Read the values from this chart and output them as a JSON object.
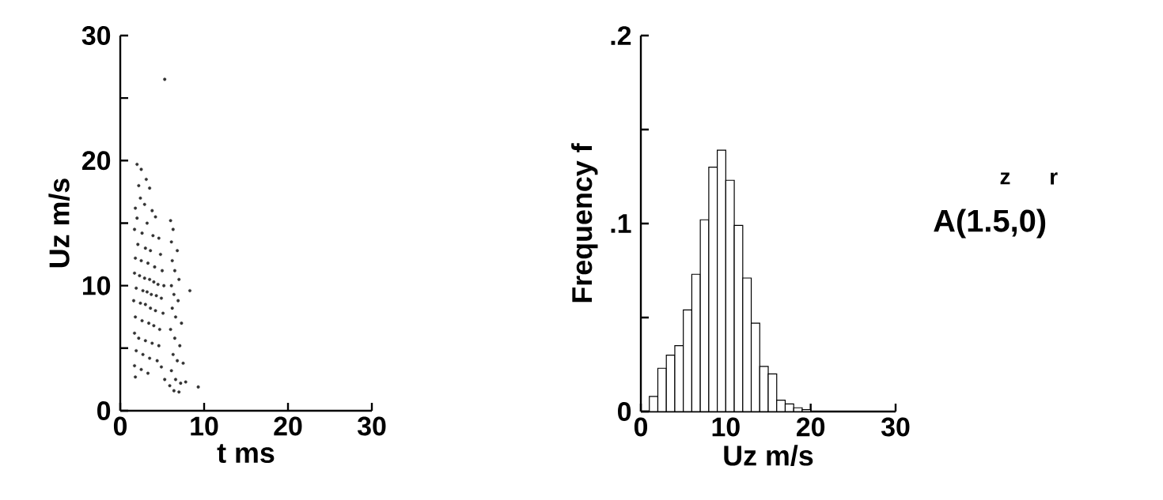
{
  "chart_data": [
    {
      "type": "scatter",
      "xlabel": "t    ms",
      "ylabel": "Uz    m/s",
      "color": "#333333",
      "xlim": [
        0,
        30
      ],
      "xticks": [
        0,
        10,
        20,
        30
      ],
      "ylim": [
        0,
        30
      ],
      "yticks": [
        0,
        {
          "value": 5,
          "label": null
        },
        10,
        {
          "value": 15,
          "label": null
        },
        20,
        {
          "value": 25,
          "label": null
        },
        30
      ],
      "x": [
        2.0,
        2.5,
        2.2,
        3.1,
        3.5,
        2.4,
        1.8,
        2.9,
        3.8,
        4.2,
        2.0,
        3.2,
        1.7,
        2.6,
        3.9,
        4.6,
        2.1,
        3.0,
        3.6,
        4.8,
        1.8,
        2.5,
        3.3,
        4.1,
        5.0,
        1.7,
        2.3,
        2.9,
        3.5,
        4.0,
        4.5,
        5.2,
        1.9,
        2.7,
        3.2,
        3.7,
        4.3,
        4.9,
        1.6,
        2.4,
        3.0,
        3.6,
        4.2,
        5.1,
        1.8,
        2.6,
        3.4,
        4.0,
        4.7,
        1.7,
        2.2,
        3.0,
        3.8,
        4.6,
        1.9,
        2.7,
        3.5,
        4.4,
        1.7,
        2.5,
        3.3,
        1.8,
        4.9,
        5.3,
        6.0,
        6.3,
        6.1,
        6.8,
        6.2,
        6.5,
        7.0,
        6.1,
        6.4,
        8.3,
        6.9,
        6.2,
        6.6,
        7.3,
        6.0,
        6.5,
        7.1,
        6.3,
        6.8,
        7.5,
        6.1,
        6.6,
        7.2,
        5.9,
        6.4,
        7.0,
        7.8,
        9.3,
        5.3
      ],
      "values": [
        19.7,
        19.3,
        18.0,
        18.5,
        17.8,
        17.0,
        16.2,
        16.5,
        16.0,
        15.5,
        15.4,
        15.0,
        14.5,
        14.2,
        14.0,
        13.8,
        13.3,
        13.0,
        12.8,
        12.5,
        12.2,
        12.0,
        11.8,
        11.5,
        11.2,
        11.0,
        10.8,
        10.6,
        10.5,
        10.3,
        10.1,
        10.0,
        9.8,
        9.6,
        9.5,
        9.3,
        9.2,
        9.0,
        8.8,
        8.6,
        8.5,
        8.2,
        8.0,
        7.8,
        7.5,
        7.2,
        7.0,
        6.8,
        6.5,
        6.2,
        5.8,
        5.6,
        5.4,
        5.2,
        4.8,
        4.5,
        4.2,
        4.0,
        3.6,
        3.3,
        3.0,
        2.7,
        3.5,
        2.5,
        15.2,
        14.5,
        13.5,
        12.8,
        12.0,
        11.2,
        10.5,
        10.0,
        9.3,
        9.6,
        8.8,
        8.2,
        7.5,
        7.0,
        6.5,
        5.8,
        5.2,
        4.5,
        4.0,
        3.8,
        3.2,
        2.5,
        2.2,
        2.0,
        1.6,
        1.5,
        2.3,
        1.9,
        26.5
      ]
    },
    {
      "type": "histogram",
      "xlabel": "Uz  m/s",
      "ylabel": "Frequency   f",
      "color": "#ffffff",
      "xlim": [
        0,
        30
      ],
      "xticks": [
        0,
        10,
        20,
        30
      ],
      "ylim": [
        0,
        0.2
      ],
      "yticks": [
        {
          "value": 0,
          "label": "0"
        },
        {
          "value": 0.05,
          "label": null
        },
        {
          "value": 0.1,
          "label": ".1"
        },
        {
          "value": 0.15,
          "label": null
        },
        {
          "value": 0.2,
          "label": ".2"
        }
      ],
      "bins": [
        1,
        2,
        3,
        4,
        5,
        6,
        7,
        8,
        9,
        10,
        11,
        12,
        13,
        14,
        15,
        16,
        17,
        18,
        19,
        20
      ],
      "values": [
        0.008,
        0.023,
        0.03,
        0.035,
        0.054,
        0.073,
        0.102,
        0.13,
        0.139,
        0.123,
        0.099,
        0.071,
        0.047,
        0.024,
        0.02,
        0.006,
        0.004,
        0.002,
        0.001
      ],
      "annotations": [
        "z",
        "r",
        "A(1.5,0)"
      ]
    }
  ]
}
